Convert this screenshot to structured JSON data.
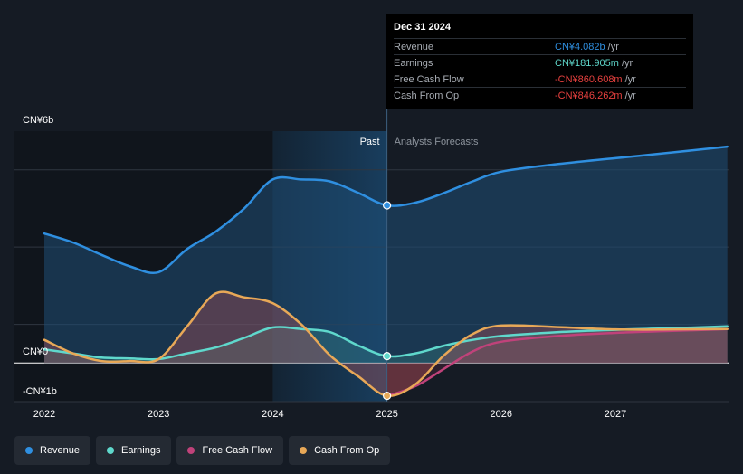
{
  "colors": {
    "revenue": "#2f8fe0",
    "earnings": "#5fd8cc",
    "fcf": "#c0427a",
    "cfo": "#e8a857",
    "negative": "#e8413f",
    "grid": "#2f3640"
  },
  "tooltip": {
    "date": "Dec 31 2024",
    "rows": [
      {
        "label": "Revenue",
        "value": "CN¥4.082b",
        "unit": "/yr",
        "color": "#2f8fe0"
      },
      {
        "label": "Earnings",
        "value": "CN¥181.905m",
        "unit": "/yr",
        "color": "#5fd8cc"
      },
      {
        "label": "Free Cash Flow",
        "value": "-CN¥860.608m",
        "unit": "/yr",
        "color": "#e8413f"
      },
      {
        "label": "Cash From Op",
        "value": "-CN¥846.262m",
        "unit": "/yr",
        "color": "#e8413f"
      }
    ]
  },
  "legend": [
    {
      "label": "Revenue",
      "color": "#2f8fe0"
    },
    {
      "label": "Earnings",
      "color": "#5fd8cc"
    },
    {
      "label": "Free Cash Flow",
      "color": "#c0427a"
    },
    {
      "label": "Cash From Op",
      "color": "#e8a857"
    }
  ],
  "chart_data": {
    "type": "line",
    "ylim": [
      -1,
      6
    ],
    "xlim": [
      2021.75,
      2027.98
    ],
    "y_ticks": [
      {
        "value": 6,
        "label": "CN¥6b"
      },
      {
        "value": 0,
        "label": "CN¥0"
      },
      {
        "value": -1,
        "label": "-CN¥1b"
      }
    ],
    "x_ticks": [
      {
        "value": 2022,
        "label": "2022"
      },
      {
        "value": 2023,
        "label": "2023"
      },
      {
        "value": 2024,
        "label": "2024"
      },
      {
        "value": 2025,
        "label": "2025"
      },
      {
        "value": 2026,
        "label": "2026"
      },
      {
        "value": 2027,
        "label": "2027"
      }
    ],
    "past_label": "Past",
    "forecast_label": "Analysts Forecasts",
    "divider_x": 2025.0,
    "highlight_start_x": 2024.0,
    "series": [
      {
        "name": "Revenue",
        "key": "revenue",
        "points": [
          [
            2022.0,
            3.35
          ],
          [
            2022.25,
            3.12
          ],
          [
            2022.5,
            2.8
          ],
          [
            2022.75,
            2.5
          ],
          [
            2023.0,
            2.35
          ],
          [
            2023.25,
            2.95
          ],
          [
            2023.5,
            3.4
          ],
          [
            2023.75,
            4.0
          ],
          [
            2024.0,
            4.75
          ],
          [
            2024.25,
            4.75
          ],
          [
            2024.5,
            4.7
          ],
          [
            2024.75,
            4.4
          ],
          [
            2025.0,
            4.08
          ],
          [
            2025.25,
            4.15
          ],
          [
            2025.5,
            4.4
          ],
          [
            2025.75,
            4.7
          ],
          [
            2026.0,
            4.95
          ],
          [
            2026.5,
            5.15
          ],
          [
            2027.0,
            5.3
          ],
          [
            2027.5,
            5.45
          ],
          [
            2027.98,
            5.6
          ]
        ]
      },
      {
        "name": "Earnings",
        "key": "earnings",
        "points": [
          [
            2022.0,
            0.35
          ],
          [
            2022.25,
            0.25
          ],
          [
            2022.5,
            0.14
          ],
          [
            2022.75,
            0.12
          ],
          [
            2023.0,
            0.1
          ],
          [
            2023.25,
            0.25
          ],
          [
            2023.5,
            0.4
          ],
          [
            2023.75,
            0.65
          ],
          [
            2024.0,
            0.92
          ],
          [
            2024.25,
            0.88
          ],
          [
            2024.5,
            0.8
          ],
          [
            2024.75,
            0.45
          ],
          [
            2025.0,
            0.18
          ],
          [
            2025.25,
            0.25
          ],
          [
            2025.5,
            0.45
          ],
          [
            2025.75,
            0.6
          ],
          [
            2026.0,
            0.7
          ],
          [
            2026.5,
            0.8
          ],
          [
            2027.0,
            0.86
          ],
          [
            2027.5,
            0.9
          ],
          [
            2027.98,
            0.95
          ]
        ]
      },
      {
        "name": "Free Cash Flow",
        "key": "fcf",
        "points": [
          [
            2025.0,
            -0.86
          ],
          [
            2025.25,
            -0.6
          ],
          [
            2025.5,
            -0.15
          ],
          [
            2025.75,
            0.3
          ],
          [
            2026.0,
            0.55
          ],
          [
            2026.5,
            0.7
          ],
          [
            2027.0,
            0.78
          ],
          [
            2027.5,
            0.83
          ],
          [
            2027.98,
            0.88
          ]
        ]
      },
      {
        "name": "Cash From Op",
        "key": "cfo",
        "points": [
          [
            2022.0,
            0.6
          ],
          [
            2022.25,
            0.25
          ],
          [
            2022.5,
            0.05
          ],
          [
            2022.75,
            0.05
          ],
          [
            2023.0,
            0.1
          ],
          [
            2023.25,
            0.95
          ],
          [
            2023.5,
            1.8
          ],
          [
            2023.75,
            1.7
          ],
          [
            2024.0,
            1.55
          ],
          [
            2024.25,
            1.0
          ],
          [
            2024.5,
            0.2
          ],
          [
            2024.75,
            -0.35
          ],
          [
            2025.0,
            -0.85
          ],
          [
            2025.25,
            -0.55
          ],
          [
            2025.5,
            0.2
          ],
          [
            2025.75,
            0.75
          ],
          [
            2026.0,
            0.97
          ],
          [
            2026.5,
            0.93
          ],
          [
            2027.0,
            0.87
          ],
          [
            2027.5,
            0.87
          ],
          [
            2027.98,
            0.88
          ]
        ]
      }
    ]
  }
}
